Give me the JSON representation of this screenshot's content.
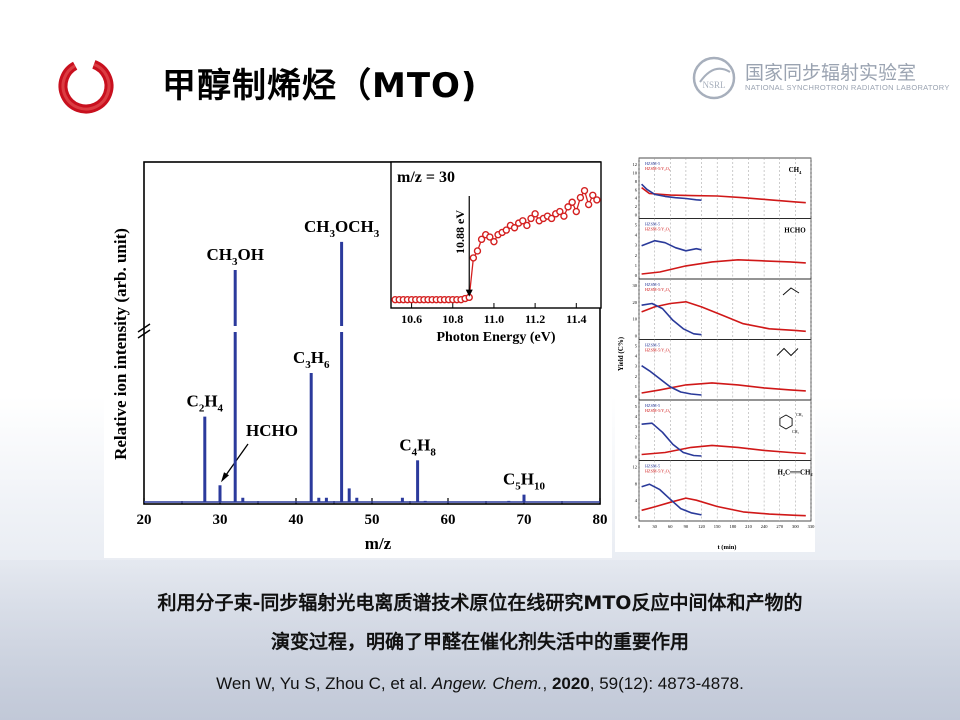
{
  "slide": {
    "title": "甲醇制烯烃（MTO)",
    "lab_name_cn": "国家同步辐射实验室",
    "lab_name_en": "NATIONAL SYNCHROTRON RADIATION LABORATORY",
    "lab_logo_text": "NSRL",
    "caption_line1": "利用分子束-同步辐射光电离质谱技术原位在线研究MTO反应中间体和产物的",
    "caption_line2": "演变过程，明确了甲醛在催化剂失活中的重要作用",
    "reference": {
      "authors": "Wen W, Yu S, Zhou C, et al. ",
      "journal": "Angew. Chem.",
      "sep": ", ",
      "year": "2020",
      "rest": ", 59(12): 4873-4878."
    }
  },
  "chart_data": [
    {
      "type": "bar",
      "xlabel": "m/z",
      "ylabel": "Relative ion intensity (arb. unit)",
      "xlim": [
        20,
        80
      ],
      "x_ticks": [
        20,
        30,
        40,
        50,
        60,
        70,
        80
      ],
      "peaks": [
        {
          "x": 28,
          "y": 0.28,
          "label": "C",
          "sub": "2",
          "label2": "H",
          "sub2": "4"
        },
        {
          "x": 30,
          "y": 0.06,
          "label": "HCHO",
          "arrow": true
        },
        {
          "x": 32,
          "y": 0.75,
          "label": "CH",
          "sub": "3",
          "label2": "OH",
          "broken": true
        },
        {
          "x": 33,
          "y": 0.02
        },
        {
          "x": 42,
          "y": 0.42,
          "label": "C",
          "sub": "3",
          "label2": "H",
          "sub2": "6"
        },
        {
          "x": 43,
          "y": 0.02
        },
        {
          "x": 44,
          "y": 0.02
        },
        {
          "x": 46,
          "y": 0.84,
          "label": "CH",
          "sub": "3",
          "label2": "OCH",
          "sub2": "3",
          "broken": true
        },
        {
          "x": 47,
          "y": 0.05
        },
        {
          "x": 48,
          "y": 0.02
        },
        {
          "x": 54,
          "y": 0.02
        },
        {
          "x": 56,
          "y": 0.14,
          "label": "C",
          "sub": "4",
          "label2": "H",
          "sub2": "8"
        },
        {
          "x": 57,
          "y": 0.01
        },
        {
          "x": 68,
          "y": 0.01
        },
        {
          "x": 70,
          "y": 0.03,
          "label": "C",
          "sub": "5",
          "label2": "H",
          "sub2": "10"
        }
      ],
      "inset": {
        "type": "line",
        "title": "m/z = 30",
        "xlabel": "Photon Energy (eV)",
        "xlim": [
          10.5,
          11.52
        ],
        "x_ticks": [
          "10.6",
          "10.8",
          "11.0",
          "11.2",
          "11.4"
        ],
        "threshold_label": "10.88 eV",
        "threshold_x": 10.88,
        "x": [
          10.52,
          10.54,
          10.56,
          10.58,
          10.6,
          10.62,
          10.64,
          10.66,
          10.68,
          10.7,
          10.72,
          10.74,
          10.76,
          10.78,
          10.8,
          10.82,
          10.84,
          10.86,
          10.88,
          10.9,
          10.92,
          10.94,
          10.96,
          10.98,
          11.0,
          11.02,
          11.04,
          11.06,
          11.08,
          11.1,
          11.12,
          11.14,
          11.16,
          11.18,
          11.2,
          11.22,
          11.24,
          11.26,
          11.28,
          11.3,
          11.32,
          11.34,
          11.36,
          11.38,
          11.4,
          11.42,
          11.44,
          11.46,
          11.48,
          11.5
        ],
        "y": [
          0.02,
          0.02,
          0.02,
          0.02,
          0.02,
          0.02,
          0.02,
          0.02,
          0.02,
          0.02,
          0.02,
          0.02,
          0.02,
          0.02,
          0.02,
          0.02,
          0.02,
          0.03,
          0.04,
          0.38,
          0.44,
          0.54,
          0.58,
          0.56,
          0.52,
          0.58,
          0.6,
          0.62,
          0.66,
          0.64,
          0.68,
          0.7,
          0.66,
          0.72,
          0.76,
          0.7,
          0.72,
          0.74,
          0.72,
          0.76,
          0.78,
          0.74,
          0.82,
          0.86,
          0.78,
          0.9,
          0.96,
          0.84,
          0.92,
          0.88
        ]
      }
    },
    {
      "type": "line",
      "xlabel": "t (min)",
      "ylabel": "Yield (C%)",
      "xlim": [
        0,
        330
      ],
      "x_ticks": [
        "0",
        "30",
        "60",
        "90",
        "120",
        "150",
        "180",
        "210",
        "240",
        "270",
        "300",
        "330"
      ],
      "legend": [
        "HZSM-5",
        "HZSM-5/Y₂O₃"
      ],
      "series_colors": [
        "#2a3a9a",
        "#d01818"
      ],
      "panels": [
        {
          "label": "CH",
          "label_sub": "4",
          "yticks": [
            "0",
            "2",
            "4",
            "6",
            "8",
            "10",
            "12"
          ],
          "ymax": 12,
          "blue": [
            [
              5,
              7.2
            ],
            [
              15,
              6.0
            ],
            [
              30,
              4.8
            ],
            [
              50,
              4.3
            ],
            [
              70,
              4.0
            ],
            [
              90,
              3.8
            ],
            [
              110,
              3.5
            ],
            [
              120,
              3.4
            ]
          ],
          "red": [
            [
              5,
              6.4
            ],
            [
              20,
              5.0
            ],
            [
              60,
              4.6
            ],
            [
              100,
              4.5
            ],
            [
              150,
              4.4
            ],
            [
              200,
              4.0
            ],
            [
              250,
              3.5
            ],
            [
              300,
              3.0
            ],
            [
              320,
              2.8
            ]
          ]
        },
        {
          "label": "HCHO",
          "yticks": [
            "0",
            "1",
            "2",
            "3",
            "4",
            "5"
          ],
          "ymax": 5,
          "blue": [
            [
              5,
              2.9
            ],
            [
              15,
              3.1
            ],
            [
              30,
              3.4
            ],
            [
              50,
              3.2
            ],
            [
              70,
              2.7
            ],
            [
              90,
              2.4
            ],
            [
              110,
              2.6
            ],
            [
              120,
              2.5
            ]
          ],
          "red": [
            [
              5,
              0.1
            ],
            [
              40,
              0.3
            ],
            [
              90,
              0.9
            ],
            [
              140,
              1.3
            ],
            [
              190,
              1.5
            ],
            [
              240,
              1.4
            ],
            [
              290,
              1.3
            ],
            [
              320,
              1.2
            ]
          ]
        },
        {
          "label": "",
          "icon": "propylene-structure",
          "yticks": [
            "0",
            "10",
            "20",
            "30"
          ],
          "ymax": 30,
          "blue": [
            [
              5,
              18
            ],
            [
              25,
              19
            ],
            [
              45,
              16
            ],
            [
              65,
              9
            ],
            [
              85,
              4
            ],
            [
              105,
              1
            ],
            [
              120,
              0.5
            ]
          ],
          "red": [
            [
              5,
              14
            ],
            [
              30,
              17
            ],
            [
              60,
              19
            ],
            [
              90,
              20
            ],
            [
              120,
              17
            ],
            [
              160,
              12
            ],
            [
              200,
              7
            ],
            [
              250,
              4
            ],
            [
              300,
              3
            ],
            [
              320,
              2.5
            ]
          ]
        },
        {
          "label": "",
          "icon": "butadiene-structure",
          "yticks": [
            "0",
            "1",
            "2",
            "3",
            "4",
            "5"
          ],
          "ymax": 5,
          "blue": [
            [
              5,
              3.0
            ],
            [
              20,
              2.5
            ],
            [
              40,
              1.7
            ],
            [
              60,
              0.9
            ],
            [
              80,
              0.4
            ],
            [
              100,
              0.2
            ],
            [
              120,
              0.1
            ]
          ],
          "red": [
            [
              5,
              0.3
            ],
            [
              40,
              0.6
            ],
            [
              90,
              1.1
            ],
            [
              140,
              1.3
            ],
            [
              190,
              1.1
            ],
            [
              240,
              0.8
            ],
            [
              290,
              0.6
            ],
            [
              320,
              0.5
            ]
          ]
        },
        {
          "label": "",
          "icon": "xylene-structure",
          "label_small": "CH₃",
          "yticks": [
            "0",
            "1",
            "2",
            "3",
            "4",
            "5"
          ],
          "ymax": 5,
          "blue": [
            [
              5,
              3.2
            ],
            [
              25,
              3.3
            ],
            [
              45,
              2.4
            ],
            [
              65,
              1.2
            ],
            [
              85,
              0.4
            ],
            [
              105,
              0.1
            ],
            [
              120,
              0.05
            ]
          ],
          "red": [
            [
              5,
              0.2
            ],
            [
              50,
              0.4
            ],
            [
              100,
              0.9
            ],
            [
              140,
              1.1
            ],
            [
              190,
              0.9
            ],
            [
              240,
              0.6
            ],
            [
              290,
              0.4
            ],
            [
              320,
              0.3
            ]
          ]
        },
        {
          "label": "H₂C══CH₂",
          "yticks": [
            "0",
            "4",
            "8",
            "12"
          ],
          "ymax": 12,
          "blue": [
            [
              5,
              7.2
            ],
            [
              20,
              7.8
            ],
            [
              40,
              6.5
            ],
            [
              60,
              4.2
            ],
            [
              80,
              2.0
            ],
            [
              100,
              1.0
            ],
            [
              120,
              0.5
            ]
          ],
          "red": [
            [
              5,
              1.6
            ],
            [
              30,
              2.4
            ],
            [
              60,
              3.5
            ],
            [
              90,
              4.5
            ],
            [
              110,
              4.0
            ],
            [
              150,
              2.5
            ],
            [
              200,
              1.2
            ],
            [
              250,
              0.7
            ],
            [
              300,
              0.4
            ],
            [
              320,
              0.3
            ]
          ]
        }
      ]
    }
  ]
}
